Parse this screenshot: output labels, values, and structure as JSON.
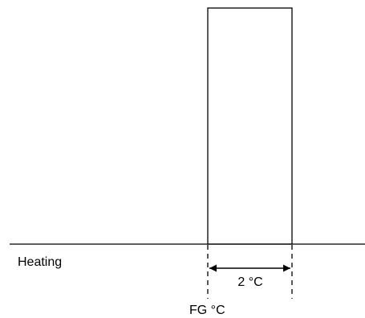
{
  "labels": {
    "heating": "Heating",
    "width": "2 °C",
    "axis": "FG °C"
  },
  "colors": {
    "stroke": "#000000",
    "background": "#ffffff"
  }
}
